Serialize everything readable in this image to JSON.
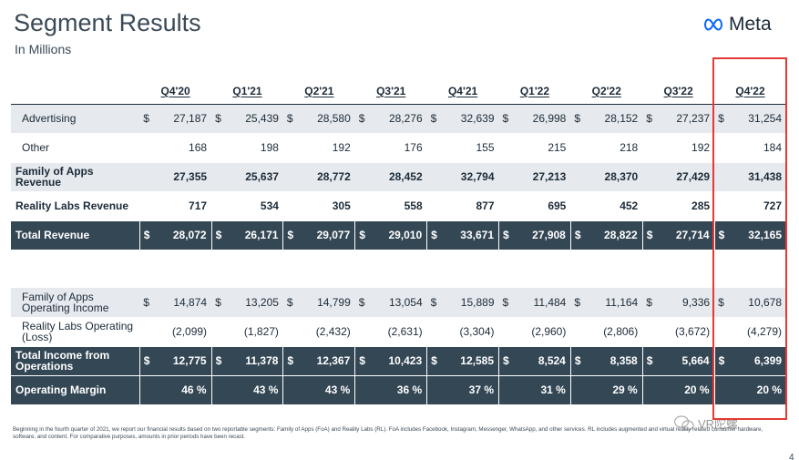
{
  "title": "Segment Results",
  "subtitle": "In Millions",
  "brand": {
    "name": "Meta",
    "icon": "meta-infinity-icon",
    "color": "#0866ff"
  },
  "columns": [
    "Q4'20",
    "Q1'21",
    "Q2'21",
    "Q3'21",
    "Q4'21",
    "Q1'22",
    "Q2'22",
    "Q3'22",
    "Q4'22"
  ],
  "currency_symbol": "$",
  "rows": [
    {
      "label": "Advertising",
      "style": "shade",
      "indent": true,
      "currency": true,
      "values": [
        "27,187",
        "25,439",
        "28,580",
        "28,276",
        "32,639",
        "26,998",
        "28,152",
        "27,237",
        "31,254"
      ]
    },
    {
      "label": "Other",
      "style": "plain",
      "indent": true,
      "currency": false,
      "values": [
        "168",
        "198",
        "192",
        "176",
        "155",
        "215",
        "218",
        "192",
        "184"
      ]
    },
    {
      "label": "Family of Apps Revenue",
      "style": "shade-bold",
      "indent": false,
      "currency": false,
      "values": [
        "27,355",
        "25,637",
        "28,772",
        "28,452",
        "32,794",
        "27,213",
        "28,370",
        "27,429",
        "31,438"
      ]
    },
    {
      "label": "Reality Labs Revenue",
      "style": "plain-bold",
      "indent": false,
      "currency": false,
      "values": [
        "717",
        "534",
        "305",
        "558",
        "877",
        "695",
        "452",
        "285",
        "727"
      ]
    },
    {
      "label": "Total Revenue",
      "style": "dark",
      "indent": false,
      "currency": true,
      "values": [
        "28,072",
        "26,171",
        "29,077",
        "29,010",
        "33,671",
        "27,908",
        "28,822",
        "27,714",
        "32,165"
      ]
    }
  ],
  "rows2": [
    {
      "label": "Family of Apps Operating Income",
      "style": "shade",
      "indent": true,
      "currency": true,
      "values": [
        "14,874",
        "13,205",
        "14,799",
        "13,054",
        "15,889",
        "11,484",
        "11,164",
        "9,336",
        "10,678"
      ]
    },
    {
      "label": "Reality Labs Operating (Loss)",
      "style": "plain",
      "indent": true,
      "currency": false,
      "values": [
        "(2,099)",
        "(1,827)",
        "(2,432)",
        "(2,631)",
        "(3,304)",
        "(2,960)",
        "(2,806)",
        "(3,672)",
        "(4,279)"
      ]
    },
    {
      "label": "Total Income from Operations",
      "style": "dark",
      "indent": false,
      "currency": true,
      "values": [
        "12,775",
        "11,378",
        "12,367",
        "10,423",
        "12,585",
        "8,524",
        "8,358",
        "5,664",
        "6,399"
      ]
    },
    {
      "label": "Operating Margin",
      "style": "dark",
      "indent": false,
      "currency": false,
      "values": [
        "46 %",
        "43 %",
        "43 %",
        "36 %",
        "37 %",
        "31 %",
        "29 %",
        "20 %",
        "20 %"
      ]
    }
  ],
  "footnote": "Beginning in the fourth quarter of 2021, we report our financial results based on two reportable segments: Family of Apps (FoA) and Reality Labs (RL). FoA includes Facebook, Instagram, Messenger, WhatsApp, and other services. RL includes augmented and virtual reality related consumer hardware, software, and content. For comparative purposes, amounts in prior periods have been recast.",
  "page_number": "4",
  "watermark": "VR陀螺",
  "highlight_color": "#e53935"
}
